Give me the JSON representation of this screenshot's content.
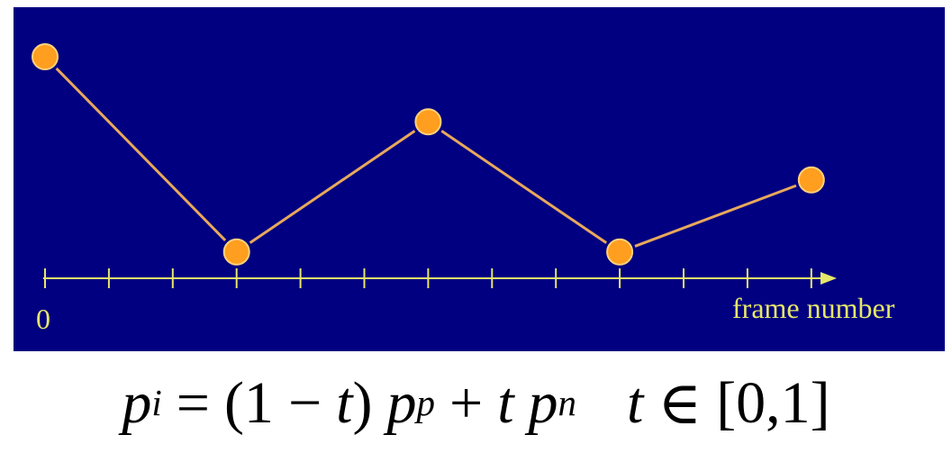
{
  "axis": {
    "origin_label": "0",
    "label": "frame number",
    "tick_count": 13
  },
  "keyframes": [
    {
      "frame": 0,
      "value": 0.93
    },
    {
      "frame": 3,
      "value": 0.09
    },
    {
      "frame": 6,
      "value": 0.65
    },
    {
      "frame": 9,
      "value": 0.09
    },
    {
      "frame": 12,
      "value": 0.4
    }
  ],
  "colors": {
    "background": "#000080",
    "axis": "#e6e66a",
    "keyframe_fill": "#ff9e1f",
    "keyframe_stroke": "#ffd27a",
    "segment": "#e8a85c"
  },
  "formula": {
    "lhs_var": "p",
    "lhs_sub": "i",
    "equals": "=",
    "open_paren": "(1",
    "minus": "−",
    "t1": "t",
    "close_paren": ")",
    "p_prev": "p",
    "prev_sub": "p",
    "plus": "+",
    "t2": "t",
    "p_next": "p",
    "next_sub": "n",
    "t3": "t",
    "element_of": "∈",
    "range": "[0,1]"
  }
}
